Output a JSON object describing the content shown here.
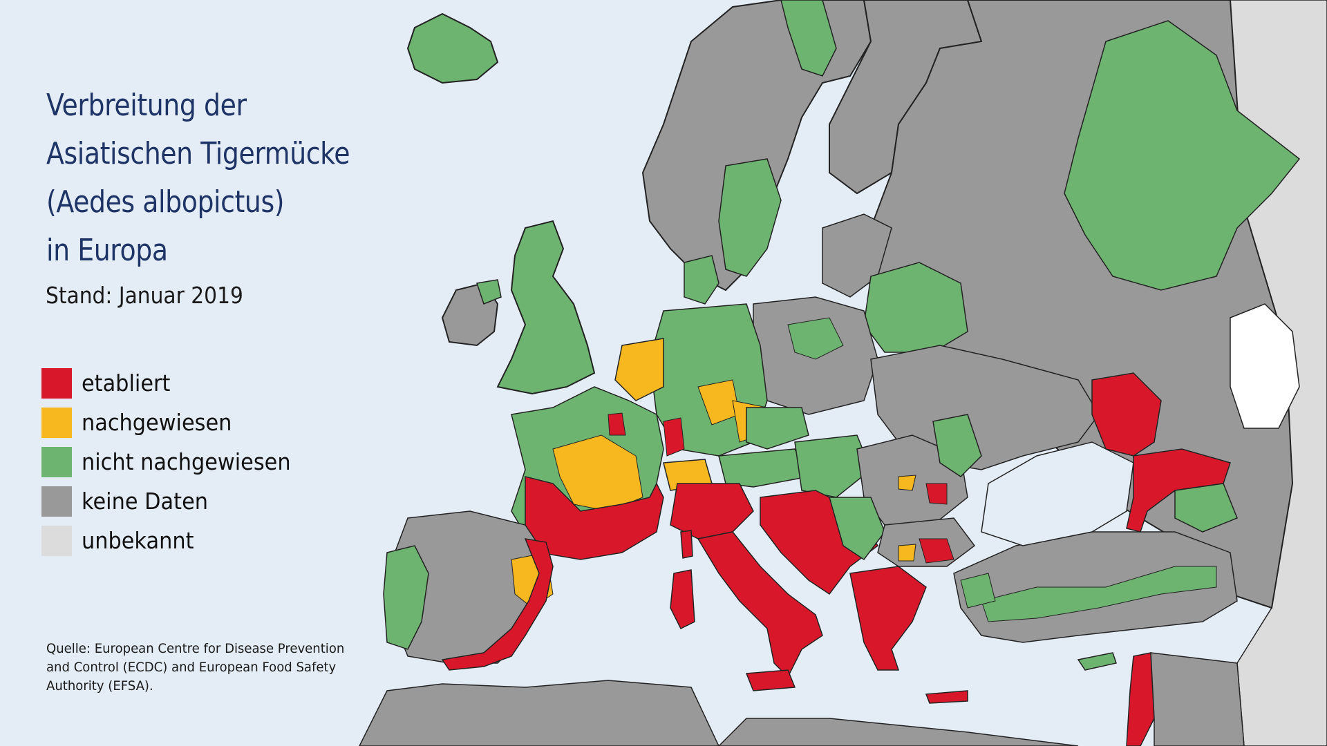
{
  "title": {
    "lines": [
      "Verbreitung der",
      "Asiatischen Tigermücke",
      "(Aedes albopictus)",
      "in Europa"
    ]
  },
  "status": "Stand: Januar 2019",
  "legend": [
    {
      "label": "etabliert",
      "color": "#d8182a"
    },
    {
      "label": "nachgewiesen",
      "color": "#f7b71e"
    },
    {
      "label": "nicht nachgewiesen",
      "color": "#6db470"
    },
    {
      "label": "keine Daten",
      "color": "#999999"
    },
    {
      "label": "unbekannt",
      "color": "#dcdcdc"
    }
  ],
  "source": {
    "lines": [
      "Quelle: European Centre for Disease Prevention",
      "and Control (ECDC) and European Food Safety",
      "Authority (EFSA)."
    ]
  },
  "colors": {
    "sea": "#e4ecf5",
    "established": "#d8182a",
    "detected": "#f7b71e",
    "absent": "#6db470",
    "nodata": "#999999",
    "unknown": "#dcdcdc",
    "title": "#1f3466"
  }
}
